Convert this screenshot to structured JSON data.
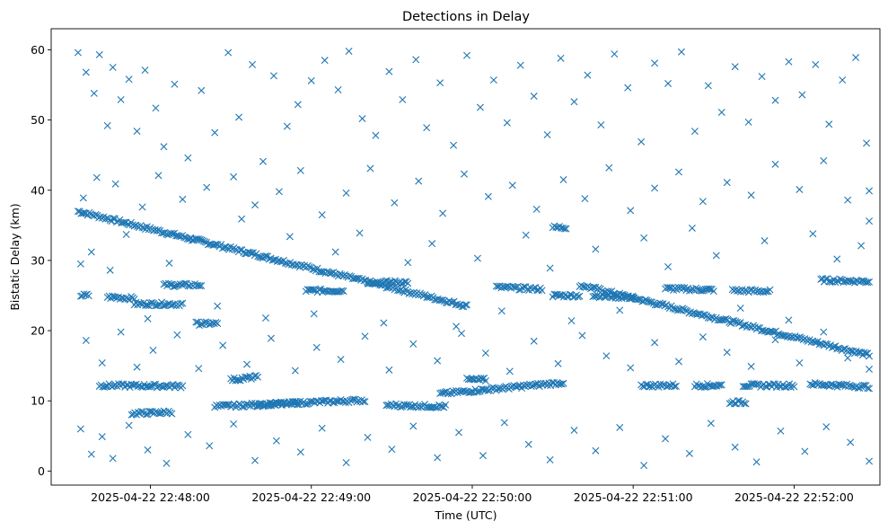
{
  "chart_data": {
    "type": "scatter",
    "title": "Detections in Delay",
    "xlabel": "Time (UTC)",
    "ylabel": "Bistatic Delay (km)",
    "marker": "x",
    "color": "#1f77b4",
    "grid": false,
    "legend": "none",
    "xlim": [
      "2025-04-22 22:47:23",
      "2025-04-22 22:52:32"
    ],
    "ylim": [
      -2,
      63
    ],
    "xticks": [
      {
        "t": "2025-04-22 22:48:00",
        "label": "2025-04-22 22:48:00"
      },
      {
        "t": "2025-04-22 22:49:00",
        "label": "2025-04-22 22:49:00"
      },
      {
        "t": "2025-04-22 22:50:00",
        "label": "2025-04-22 22:50:00"
      },
      {
        "t": "2025-04-22 22:51:00",
        "label": "2025-04-22 22:51:00"
      },
      {
        "t": "2025-04-22 22:52:00",
        "label": "2025-04-22 22:52:00"
      }
    ],
    "yticks": [
      0,
      10,
      20,
      30,
      40,
      50,
      60
    ],
    "tracks": [
      {
        "from": "2025-04-22 22:47:33",
        "to": "2025-04-22 22:49:58",
        "y_start": 37,
        "y_end": 23.5
      },
      {
        "from": "2025-04-22 22:50:40",
        "to": "2025-04-22 22:52:28",
        "y_start": 26.5,
        "y_end": 16.5
      },
      {
        "from": "2025-04-22 22:47:34",
        "to": "2025-04-22 22:47:37",
        "y_start": 25,
        "y_end": 25
      },
      {
        "from": "2025-04-22 22:47:44",
        "to": "2025-04-22 22:47:54",
        "y_start": 24.8,
        "y_end": 24.6
      },
      {
        "from": "2025-04-22 22:47:54",
        "to": "2025-04-22 22:48:12",
        "y_start": 23.8,
        "y_end": 23.8
      },
      {
        "from": "2025-04-22 22:48:05",
        "to": "2025-04-22 22:48:19",
        "y_start": 26.5,
        "y_end": 26.5
      },
      {
        "from": "2025-04-22 22:48:17",
        "to": "2025-04-22 22:48:25",
        "y_start": 21,
        "y_end": 21
      },
      {
        "from": "2025-04-22 22:48:58",
        "to": "2025-04-22 22:49:12",
        "y_start": 25.7,
        "y_end": 25.7
      },
      {
        "from": "2025-04-22 22:49:21",
        "to": "2025-04-22 22:49:36",
        "y_start": 26.9,
        "y_end": 26.9
      },
      {
        "from": "2025-04-22 22:50:09",
        "to": "2025-04-22 22:50:26",
        "y_start": 26.2,
        "y_end": 25.9
      },
      {
        "from": "2025-04-22 22:50:30",
        "to": "2025-04-22 22:50:40",
        "y_start": 25,
        "y_end": 25
      },
      {
        "from": "2025-04-22 22:50:30",
        "to": "2025-04-22 22:50:35",
        "y_start": 34.7,
        "y_end": 34.7
      },
      {
        "from": "2025-04-22 22:50:45",
        "to": "2025-04-22 22:51:00",
        "y_start": 25,
        "y_end": 24.7
      },
      {
        "from": "2025-04-22 22:51:12",
        "to": "2025-04-22 22:51:30",
        "y_start": 26,
        "y_end": 25.8
      },
      {
        "from": "2025-04-22 22:51:37",
        "to": "2025-04-22 22:51:51",
        "y_start": 25.7,
        "y_end": 25.6
      },
      {
        "from": "2025-04-22 22:52:10",
        "to": "2025-04-22 22:52:28",
        "y_start": 27.2,
        "y_end": 27
      },
      {
        "from": "2025-04-22 22:47:41",
        "to": "2025-04-22 22:48:12",
        "y_start": 12.2,
        "y_end": 12.1
      },
      {
        "from": "2025-04-22 22:47:53",
        "to": "2025-04-22 22:48:08",
        "y_start": 8.2,
        "y_end": 8.4
      },
      {
        "from": "2025-04-22 22:48:24",
        "to": "2025-04-22 22:49:20",
        "y_start": 9.2,
        "y_end": 10.1
      },
      {
        "from": "2025-04-22 22:48:30",
        "to": "2025-04-22 22:48:40",
        "y_start": 13,
        "y_end": 13.4
      },
      {
        "from": "2025-04-22 22:48:40",
        "to": "2025-04-22 22:48:55",
        "y_start": 9.4,
        "y_end": 9.7
      },
      {
        "from": "2025-04-22 22:49:28",
        "to": "2025-04-22 22:49:50",
        "y_start": 9.4,
        "y_end": 9.2
      },
      {
        "from": "2025-04-22 22:49:48",
        "to": "2025-04-22 22:50:34",
        "y_start": 11,
        "y_end": 12.6
      },
      {
        "from": "2025-04-22 22:49:58",
        "to": "2025-04-22 22:50:05",
        "y_start": 13,
        "y_end": 13
      },
      {
        "from": "2025-04-22 22:51:03",
        "to": "2025-04-22 22:51:16",
        "y_start": 12.2,
        "y_end": 12.2
      },
      {
        "from": "2025-04-22 22:51:23",
        "to": "2025-04-22 22:51:33",
        "y_start": 12.2,
        "y_end": 12.2
      },
      {
        "from": "2025-04-22 22:51:36",
        "to": "2025-04-22 22:51:42",
        "y_start": 9.8,
        "y_end": 9.8
      },
      {
        "from": "2025-04-22 22:51:41",
        "to": "2025-04-22 22:52:00",
        "y_start": 12.2,
        "y_end": 12.2
      },
      {
        "from": "2025-04-22 22:52:06",
        "to": "2025-04-22 22:52:28",
        "y_start": 12.4,
        "y_end": 12
      }
    ],
    "noise_points": [
      [
        "22:47:33",
        59.6
      ],
      [
        "22:47:36",
        56.8
      ],
      [
        "22:47:39",
        53.8
      ],
      [
        "22:47:41",
        59.3
      ],
      [
        "22:47:44",
        49.2
      ],
      [
        "22:47:46",
        57.5
      ],
      [
        "22:47:49",
        52.9
      ],
      [
        "22:47:52",
        55.8
      ],
      [
        "22:47:55",
        48.4
      ],
      [
        "22:47:58",
        57.1
      ],
      [
        "22:48:02",
        51.7
      ],
      [
        "22:48:05",
        46.2
      ],
      [
        "22:48:09",
        55.1
      ],
      [
        "22:48:14",
        44.6
      ],
      [
        "22:48:19",
        54.2
      ],
      [
        "22:48:24",
        48.2
      ],
      [
        "22:48:29",
        59.6
      ],
      [
        "22:48:33",
        50.4
      ],
      [
        "22:48:38",
        57.9
      ],
      [
        "22:48:42",
        44.1
      ],
      [
        "22:48:46",
        56.3
      ],
      [
        "22:48:51",
        49.1
      ],
      [
        "22:48:55",
        52.2
      ],
      [
        "22:49:00",
        55.6
      ],
      [
        "22:49:05",
        58.5
      ],
      [
        "22:49:10",
        54.3
      ],
      [
        "22:49:14",
        59.8
      ],
      [
        "22:49:19",
        50.2
      ],
      [
        "22:49:24",
        47.8
      ],
      [
        "22:49:29",
        56.9
      ],
      [
        "22:49:34",
        52.9
      ],
      [
        "22:49:39",
        58.6
      ],
      [
        "22:49:43",
        48.9
      ],
      [
        "22:49:48",
        55.3
      ],
      [
        "22:49:53",
        46.4
      ],
      [
        "22:49:58",
        59.2
      ],
      [
        "22:50:03",
        51.8
      ],
      [
        "22:50:08",
        55.7
      ],
      [
        "22:50:13",
        49.6
      ],
      [
        "22:50:18",
        57.8
      ],
      [
        "22:50:23",
        53.4
      ],
      [
        "22:50:28",
        47.9
      ],
      [
        "22:50:33",
        58.8
      ],
      [
        "22:50:38",
        52.6
      ],
      [
        "22:50:43",
        56.4
      ],
      [
        "22:50:48",
        49.3
      ],
      [
        "22:50:53",
        59.4
      ],
      [
        "22:50:58",
        54.6
      ],
      [
        "22:51:03",
        46.9
      ],
      [
        "22:51:08",
        58.1
      ],
      [
        "22:51:13",
        55.2
      ],
      [
        "22:51:18",
        59.7
      ],
      [
        "22:51:23",
        48.4
      ],
      [
        "22:51:28",
        54.9
      ],
      [
        "22:51:33",
        51.1
      ],
      [
        "22:51:38",
        57.6
      ],
      [
        "22:51:43",
        49.7
      ],
      [
        "22:51:48",
        56.2
      ],
      [
        "22:51:53",
        52.8
      ],
      [
        "22:51:58",
        58.3
      ],
      [
        "22:52:03",
        53.6
      ],
      [
        "22:52:08",
        57.9
      ],
      [
        "22:52:13",
        49.4
      ],
      [
        "22:52:18",
        55.7
      ],
      [
        "22:52:23",
        58.9
      ],
      [
        "22:52:27",
        46.7
      ],
      [
        "22:47:35",
        38.9
      ],
      [
        "22:47:40",
        41.8
      ],
      [
        "22:47:47",
        40.9
      ],
      [
        "22:47:57",
        37.6
      ],
      [
        "22:48:03",
        42.1
      ],
      [
        "22:48:12",
        38.7
      ],
      [
        "22:48:21",
        40.4
      ],
      [
        "22:48:31",
        41.9
      ],
      [
        "22:48:39",
        37.9
      ],
      [
        "22:48:48",
        39.8
      ],
      [
        "22:48:56",
        42.8
      ],
      [
        "22:49:04",
        36.5
      ],
      [
        "22:49:13",
        39.6
      ],
      [
        "22:49:22",
        43.1
      ],
      [
        "22:49:31",
        38.2
      ],
      [
        "22:49:40",
        41.3
      ],
      [
        "22:49:49",
        36.7
      ],
      [
        "22:49:57",
        42.3
      ],
      [
        "22:50:06",
        39.1
      ],
      [
        "22:50:15",
        40.7
      ],
      [
        "22:50:24",
        37.3
      ],
      [
        "22:50:34",
        41.5
      ],
      [
        "22:50:42",
        38.8
      ],
      [
        "22:50:51",
        43.2
      ],
      [
        "22:50:59",
        37.1
      ],
      [
        "22:51:08",
        40.3
      ],
      [
        "22:51:17",
        42.6
      ],
      [
        "22:51:26",
        38.4
      ],
      [
        "22:51:35",
        41.1
      ],
      [
        "22:51:44",
        39.3
      ],
      [
        "22:51:53",
        43.7
      ],
      [
        "22:52:02",
        40.1
      ],
      [
        "22:52:11",
        44.2
      ],
      [
        "22:52:20",
        38.6
      ],
      [
        "22:52:28",
        39.9
      ],
      [
        "22:47:34",
        29.5
      ],
      [
        "22:47:38",
        31.2
      ],
      [
        "22:47:45",
        28.6
      ],
      [
        "22:47:51",
        33.7
      ],
      [
        "22:47:59",
        21.7
      ],
      [
        "22:48:07",
        29.6
      ],
      [
        "22:48:15",
        33.1
      ],
      [
        "22:48:25",
        23.5
      ],
      [
        "22:48:34",
        35.9
      ],
      [
        "22:48:43",
        21.8
      ],
      [
        "22:48:52",
        33.4
      ],
      [
        "22:49:01",
        22.4
      ],
      [
        "22:49:09",
        31.2
      ],
      [
        "22:49:18",
        33.9
      ],
      [
        "22:49:27",
        21.1
      ],
      [
        "22:49:36",
        29.7
      ],
      [
        "22:49:45",
        32.4
      ],
      [
        "22:49:54",
        20.6
      ],
      [
        "22:50:02",
        30.3
      ],
      [
        "22:50:11",
        22.8
      ],
      [
        "22:50:20",
        33.6
      ],
      [
        "22:50:29",
        28.9
      ],
      [
        "22:50:37",
        21.4
      ],
      [
        "22:50:46",
        31.6
      ],
      [
        "22:50:55",
        22.9
      ],
      [
        "22:51:04",
        33.2
      ],
      [
        "22:51:13",
        29.1
      ],
      [
        "22:51:22",
        34.6
      ],
      [
        "22:51:31",
        30.7
      ],
      [
        "22:51:40",
        23.2
      ],
      [
        "22:51:49",
        32.8
      ],
      [
        "22:51:58",
        21.5
      ],
      [
        "22:52:07",
        33.8
      ],
      [
        "22:52:16",
        30.2
      ],
      [
        "22:52:25",
        32.1
      ],
      [
        "22:52:28",
        35.6
      ],
      [
        "22:47:36",
        18.6
      ],
      [
        "22:47:42",
        15.4
      ],
      [
        "22:47:49",
        19.8
      ],
      [
        "22:47:55",
        14.8
      ],
      [
        "22:48:01",
        17.2
      ],
      [
        "22:48:10",
        19.4
      ],
      [
        "22:48:18",
        14.6
      ],
      [
        "22:48:27",
        17.9
      ],
      [
        "22:48:36",
        15.2
      ],
      [
        "22:48:45",
        18.9
      ],
      [
        "22:48:54",
        14.3
      ],
      [
        "22:49:02",
        17.6
      ],
      [
        "22:49:11",
        15.9
      ],
      [
        "22:49:20",
        19.2
      ],
      [
        "22:49:29",
        14.4
      ],
      [
        "22:49:38",
        18.1
      ],
      [
        "22:49:47",
        15.7
      ],
      [
        "22:49:56",
        19.6
      ],
      [
        "22:50:05",
        16.8
      ],
      [
        "22:50:14",
        14.2
      ],
      [
        "22:50:23",
        18.5
      ],
      [
        "22:50:32",
        15.3
      ],
      [
        "22:50:41",
        19.3
      ],
      [
        "22:50:50",
        16.4
      ],
      [
        "22:50:59",
        14.7
      ],
      [
        "22:51:08",
        18.3
      ],
      [
        "22:51:17",
        15.6
      ],
      [
        "22:51:26",
        19.1
      ],
      [
        "22:51:35",
        16.9
      ],
      [
        "22:51:44",
        14.9
      ],
      [
        "22:51:53",
        18.7
      ],
      [
        "22:52:02",
        15.4
      ],
      [
        "22:52:11",
        19.8
      ],
      [
        "22:52:20",
        16.1
      ],
      [
        "22:52:28",
        14.5
      ],
      [
        "22:47:34",
        6.0
      ],
      [
        "22:47:38",
        2.4
      ],
      [
        "22:47:42",
        4.9
      ],
      [
        "22:47:46",
        1.8
      ],
      [
        "22:47:52",
        6.5
      ],
      [
        "22:47:59",
        3.0
      ],
      [
        "22:48:06",
        1.1
      ],
      [
        "22:48:14",
        5.2
      ],
      [
        "22:48:22",
        3.6
      ],
      [
        "22:48:31",
        6.7
      ],
      [
        "22:48:39",
        1.5
      ],
      [
        "22:48:47",
        4.3
      ],
      [
        "22:48:56",
        2.7
      ],
      [
        "22:49:04",
        6.1
      ],
      [
        "22:49:13",
        1.2
      ],
      [
        "22:49:21",
        4.8
      ],
      [
        "22:49:30",
        3.1
      ],
      [
        "22:49:38",
        6.4
      ],
      [
        "22:49:47",
        1.9
      ],
      [
        "22:49:55",
        5.5
      ],
      [
        "22:50:04",
        2.2
      ],
      [
        "22:50:12",
        6.9
      ],
      [
        "22:50:21",
        3.8
      ],
      [
        "22:50:29",
        1.6
      ],
      [
        "22:50:38",
        5.8
      ],
      [
        "22:50:46",
        2.9
      ],
      [
        "22:50:55",
        6.2
      ],
      [
        "22:51:04",
        0.8
      ],
      [
        "22:51:12",
        4.6
      ],
      [
        "22:51:21",
        2.5
      ],
      [
        "22:51:29",
        6.8
      ],
      [
        "22:51:38",
        3.4
      ],
      [
        "22:51:46",
        1.3
      ],
      [
        "22:51:55",
        5.7
      ],
      [
        "22:52:04",
        2.8
      ],
      [
        "22:52:12",
        6.3
      ],
      [
        "22:52:21",
        4.1
      ],
      [
        "22:52:28",
        1.4
      ]
    ]
  }
}
